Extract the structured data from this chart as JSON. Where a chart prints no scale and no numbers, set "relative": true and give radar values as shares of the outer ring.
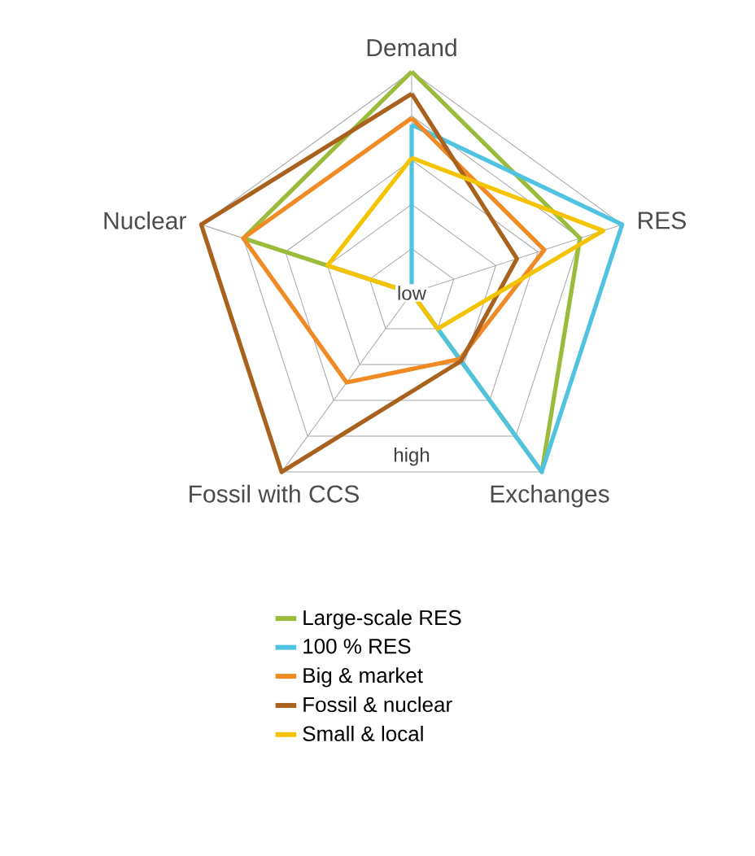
{
  "chart_data": {
    "type": "radar",
    "relative": true,
    "grid": true,
    "legend": "bottom",
    "categories": [
      "Demand",
      "RES",
      "Exchanges",
      "Fossil with CCS",
      "Nuclear"
    ],
    "annotations": [
      "low",
      "high"
    ],
    "series": [
      {
        "name": "Large-scale RES",
        "color": "#9bbb3b",
        "values": [
          1.0,
          0.8,
          1.0,
          0,
          0.8
        ]
      },
      {
        "name": "100 % RES",
        "color": "#4fc3e0",
        "values": [
          0.76,
          1.0,
          1.0,
          0,
          0
        ]
      },
      {
        "name": "Big & market",
        "color": "#f08a24",
        "values": [
          0.79,
          0.63,
          0.37,
          0.5,
          0.8
        ]
      },
      {
        "name": "Fossil & nuclear",
        "color": "#a8621e",
        "values": [
          0.9,
          0.5,
          0.38,
          1.0,
          1.0
        ]
      },
      {
        "name": "Small & local",
        "color": "#f5c400",
        "values": [
          0.61,
          0.91,
          0.2,
          0,
          0.4
        ]
      }
    ]
  }
}
